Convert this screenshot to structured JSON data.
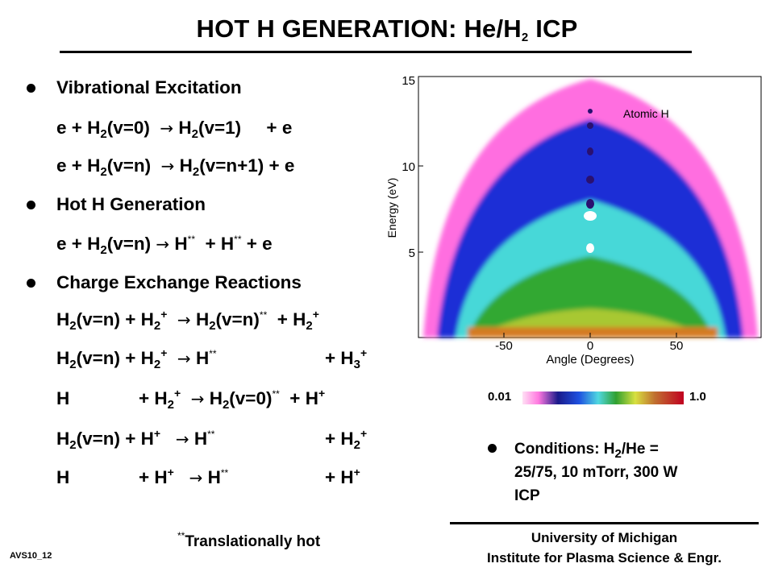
{
  "title": {
    "main": "HOT H GENERATION:  He/H",
    "sub": "2",
    "tail": " ICP"
  },
  "sections": {
    "vib": "Vibrational Excitation",
    "hot": "Hot H Generation",
    "cx": "Charge Exchange Reactions"
  },
  "plot": {
    "inner_label": "Atomic H",
    "ylabel": "Energy (eV)",
    "xlabel": "Angle (Degrees)",
    "yticks": [
      "15",
      "10",
      "5"
    ],
    "xticks": [
      "-50",
      "0",
      "50"
    ]
  },
  "colorbar": {
    "min_label": "0.01",
    "max_label": "1.0"
  },
  "conditions": {
    "line1a": "Conditions: H",
    "line1sub": "2",
    "line1b": "/He =",
    "line2": "25/75, 10 mTorr, 300 W",
    "line3": "ICP"
  },
  "footer": {
    "univ": "University of Michigan",
    "inst": "Institute for Plasma Science & Engr."
  },
  "footnote": {
    "marks": "**",
    "text": "Translationally hot"
  },
  "slide_id": "AVS10_12",
  "colors": {
    "magenta": "#ff5ad8",
    "blue": "#1d2fd6",
    "cyan": "#46d8d8",
    "green": "#2ea52e",
    "orange": "#d47a20"
  }
}
